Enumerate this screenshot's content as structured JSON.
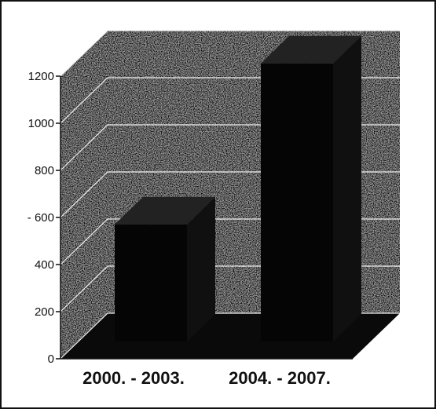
{
  "chart_data": {
    "type": "bar",
    "categories": [
      "2000. - 2003.",
      "2004. - 2007."
    ],
    "values": [
      497,
      1181
    ],
    "data_labels": [
      "497",
      "1181"
    ],
    "ylim": [
      0,
      1200
    ],
    "yticks": [
      0,
      200,
      400,
      600,
      800,
      1000,
      1200
    ],
    "ytick_labels": [
      "0",
      "200",
      "400",
      "- 600",
      "800",
      "1000",
      "1200"
    ],
    "title": "",
    "xlabel": "",
    "ylabel": "",
    "grid": true,
    "three_d": true,
    "colors": {
      "bar": "#050505",
      "floor": "#0a0a0a",
      "wall": "#9a9a9a",
      "gridline": "#f0f0f0",
      "axis": "#111111"
    }
  }
}
